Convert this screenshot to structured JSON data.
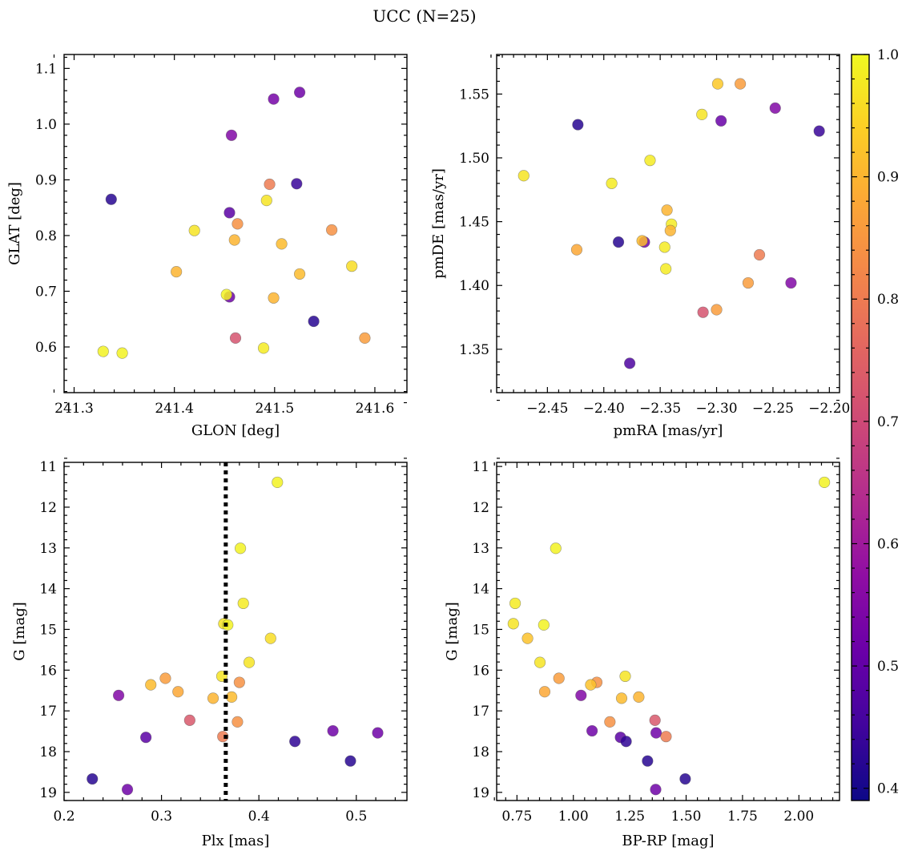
{
  "title": "UCC (N=25)",
  "colors": {
    "cmap": "plasma",
    "vmin": 0.39,
    "vmax": 1.0,
    "refline": "#000000"
  },
  "chart_data": [
    {
      "type": "scatter",
      "id": "glon_glat",
      "xlabel": "GLON [deg]",
      "ylabel": "GLAT [deg]",
      "xlim": [
        241.29,
        241.632
      ],
      "ylim": [
        0.518,
        1.125
      ],
      "xticks": [
        241.3,
        241.4,
        241.5,
        241.6
      ],
      "xtick_labels": [
        "241.3",
        "241.4",
        "241.5",
        "241.6"
      ],
      "yticks": [
        0.6,
        0.7,
        0.8,
        0.9,
        1.0,
        1.1
      ],
      "ytick_labels": [
        "0.6",
        "0.7",
        "0.8",
        "0.9",
        "1.0",
        "1.1"
      ],
      "points": [
        {
          "x": 241.525,
          "y": 1.057,
          "c": 0.52
        },
        {
          "x": 241.499,
          "y": 1.045,
          "c": 0.53
        },
        {
          "x": 241.457,
          "y": 0.98,
          "c": 0.55
        },
        {
          "x": 241.337,
          "y": 0.865,
          "c": 0.42
        },
        {
          "x": 241.495,
          "y": 0.892,
          "c": 0.8
        },
        {
          "x": 241.522,
          "y": 0.893,
          "c": 0.44
        },
        {
          "x": 241.492,
          "y": 0.863,
          "c": 0.97
        },
        {
          "x": 241.455,
          "y": 0.841,
          "c": 0.49
        },
        {
          "x": 241.463,
          "y": 0.821,
          "c": 0.84
        },
        {
          "x": 241.42,
          "y": 0.809,
          "c": 0.97
        },
        {
          "x": 241.46,
          "y": 0.792,
          "c": 0.9
        },
        {
          "x": 241.507,
          "y": 0.785,
          "c": 0.91
        },
        {
          "x": 241.557,
          "y": 0.81,
          "c": 0.84
        },
        {
          "x": 241.402,
          "y": 0.735,
          "c": 0.9
        },
        {
          "x": 241.577,
          "y": 0.745,
          "c": 0.96
        },
        {
          "x": 241.525,
          "y": 0.731,
          "c": 0.91
        },
        {
          "x": 241.455,
          "y": 0.69,
          "c": 0.52
        },
        {
          "x": 241.452,
          "y": 0.694,
          "c": 0.99
        },
        {
          "x": 241.499,
          "y": 0.688,
          "c": 0.9
        },
        {
          "x": 241.539,
          "y": 0.646,
          "c": 0.42
        },
        {
          "x": 241.461,
          "y": 0.616,
          "c": 0.72
        },
        {
          "x": 241.59,
          "y": 0.616,
          "c": 0.86
        },
        {
          "x": 241.489,
          "y": 0.598,
          "c": 0.98
        },
        {
          "x": 241.329,
          "y": 0.592,
          "c": 0.99
        },
        {
          "x": 241.348,
          "y": 0.589,
          "c": 0.99
        }
      ]
    },
    {
      "type": "scatter",
      "id": "pmra_pmde",
      "xlabel": "pmRA [mas/yr]",
      "ylabel": "pmDE [mas/yr]",
      "xlim": [
        -2.495,
        -2.191
      ],
      "ylim": [
        1.316,
        1.581
      ],
      "xticks": [
        -2.45,
        -2.4,
        -2.35,
        -2.3,
        -2.25,
        -2.2
      ],
      "xtick_labels": [
        "−2.45",
        "−2.40",
        "−2.35",
        "−2.30",
        "−2.25",
        "−2.20"
      ],
      "yticks": [
        1.35,
        1.4,
        1.45,
        1.5,
        1.55
      ],
      "ytick_labels": [
        "1.35",
        "1.40",
        "1.45",
        "1.50",
        "1.55"
      ],
      "points": [
        {
          "x": -2.299,
          "y": 1.558,
          "c": 0.93
        },
        {
          "x": -2.279,
          "y": 1.558,
          "c": 0.86
        },
        {
          "x": -2.248,
          "y": 1.539,
          "c": 0.55
        },
        {
          "x": -2.313,
          "y": 1.534,
          "c": 0.97
        },
        {
          "x": -2.296,
          "y": 1.529,
          "c": 0.51
        },
        {
          "x": -2.423,
          "y": 1.526,
          "c": 0.42
        },
        {
          "x": -2.209,
          "y": 1.521,
          "c": 0.44
        },
        {
          "x": -2.359,
          "y": 1.498,
          "c": 0.98
        },
        {
          "x": -2.471,
          "y": 1.486,
          "c": 0.97
        },
        {
          "x": -2.393,
          "y": 1.48,
          "c": 0.98
        },
        {
          "x": -2.344,
          "y": 1.459,
          "c": 0.9
        },
        {
          "x": -2.34,
          "y": 1.448,
          "c": 0.98
        },
        {
          "x": -2.341,
          "y": 1.443,
          "c": 0.9
        },
        {
          "x": -2.387,
          "y": 1.434,
          "c": 0.42
        },
        {
          "x": -2.364,
          "y": 1.434,
          "c": 0.52
        },
        {
          "x": -2.366,
          "y": 1.435,
          "c": 0.91
        },
        {
          "x": -2.346,
          "y": 1.43,
          "c": 0.98
        },
        {
          "x": -2.424,
          "y": 1.428,
          "c": 0.88
        },
        {
          "x": -2.262,
          "y": 1.424,
          "c": 0.8
        },
        {
          "x": -2.345,
          "y": 1.413,
          "c": 0.98
        },
        {
          "x": -2.272,
          "y": 1.402,
          "c": 0.86
        },
        {
          "x": -2.234,
          "y": 1.402,
          "c": 0.55
        },
        {
          "x": -2.3,
          "y": 1.381,
          "c": 0.86
        },
        {
          "x": -2.312,
          "y": 1.379,
          "c": 0.72
        },
        {
          "x": -2.377,
          "y": 1.339,
          "c": 0.47
        }
      ]
    },
    {
      "type": "scatter",
      "id": "plx_g",
      "xlabel": "Plx [mas]",
      "ylabel": "G [mag]",
      "xlim": [
        0.2,
        0.552
      ],
      "ylim": [
        19.2,
        10.9
      ],
      "y_inverted": true,
      "xticks": [
        0.2,
        0.3,
        0.4,
        0.5
      ],
      "xtick_labels": [
        "0.2",
        "0.3",
        "0.4",
        "0.5"
      ],
      "yticks": [
        11,
        12,
        13,
        14,
        15,
        16,
        17,
        18,
        19
      ],
      "ytick_labels": [
        "11",
        "12",
        "13",
        "14",
        "15",
        "16",
        "17",
        "18",
        "19"
      ],
      "vline": {
        "x": 0.366,
        "style": "dotted"
      },
      "points": [
        {
          "x": 0.419,
          "y": 11.39,
          "c": 0.99
        },
        {
          "x": 0.381,
          "y": 13.01,
          "c": 0.99
        },
        {
          "x": 0.384,
          "y": 14.36,
          "c": 0.98
        },
        {
          "x": 0.364,
          "y": 14.86,
          "c": 0.97
        },
        {
          "x": 0.368,
          "y": 14.89,
          "c": 0.99
        },
        {
          "x": 0.412,
          "y": 15.22,
          "c": 0.96
        },
        {
          "x": 0.39,
          "y": 15.81,
          "c": 0.97
        },
        {
          "x": 0.362,
          "y": 16.15,
          "c": 0.97
        },
        {
          "x": 0.304,
          "y": 16.2,
          "c": 0.86
        },
        {
          "x": 0.38,
          "y": 16.3,
          "c": 0.84
        },
        {
          "x": 0.289,
          "y": 16.36,
          "c": 0.91
        },
        {
          "x": 0.317,
          "y": 16.53,
          "c": 0.88
        },
        {
          "x": 0.256,
          "y": 16.62,
          "c": 0.55
        },
        {
          "x": 0.372,
          "y": 16.66,
          "c": 0.91
        },
        {
          "x": 0.353,
          "y": 16.69,
          "c": 0.9
        },
        {
          "x": 0.329,
          "y": 17.23,
          "c": 0.73
        },
        {
          "x": 0.378,
          "y": 17.27,
          "c": 0.84
        },
        {
          "x": 0.476,
          "y": 17.49,
          "c": 0.52
        },
        {
          "x": 0.522,
          "y": 17.54,
          "c": 0.52
        },
        {
          "x": 0.363,
          "y": 17.63,
          "c": 0.8
        },
        {
          "x": 0.284,
          "y": 17.65,
          "c": 0.49
        },
        {
          "x": 0.437,
          "y": 17.75,
          "c": 0.43
        },
        {
          "x": 0.494,
          "y": 18.23,
          "c": 0.42
        },
        {
          "x": 0.229,
          "y": 18.67,
          "c": 0.42
        },
        {
          "x": 0.265,
          "y": 18.93,
          "c": 0.52
        }
      ]
    },
    {
      "type": "scatter",
      "id": "bprp_g",
      "xlabel": "BP-RP [mag]",
      "ylabel": "G [mag]",
      "xlim": [
        0.66,
        2.18
      ],
      "ylim": [
        19.2,
        10.9
      ],
      "y_inverted": true,
      "xticks": [
        0.75,
        1.0,
        1.25,
        1.5,
        1.75,
        2.0
      ],
      "xtick_labels": [
        "0.75",
        "1.00",
        "1.25",
        "1.50",
        "1.75",
        "2.00"
      ],
      "yticks": [
        11,
        12,
        13,
        14,
        15,
        16,
        17,
        18,
        19
      ],
      "ytick_labels": [
        "11",
        "12",
        "13",
        "14",
        "15",
        "16",
        "17",
        "18",
        "19"
      ],
      "points": [
        {
          "x": 2.113,
          "y": 11.39,
          "c": 0.99
        },
        {
          "x": 0.922,
          "y": 13.01,
          "c": 0.99
        },
        {
          "x": 0.742,
          "y": 14.36,
          "c": 0.98
        },
        {
          "x": 0.734,
          "y": 14.86,
          "c": 0.97
        },
        {
          "x": 0.869,
          "y": 14.89,
          "c": 0.99
        },
        {
          "x": 0.797,
          "y": 15.22,
          "c": 0.92
        },
        {
          "x": 0.852,
          "y": 15.81,
          "c": 0.97
        },
        {
          "x": 1.23,
          "y": 16.15,
          "c": 0.97
        },
        {
          "x": 0.936,
          "y": 16.2,
          "c": 0.86
        },
        {
          "x": 1.104,
          "y": 16.3,
          "c": 0.84
        },
        {
          "x": 1.077,
          "y": 16.36,
          "c": 0.92
        },
        {
          "x": 0.873,
          "y": 16.53,
          "c": 0.88
        },
        {
          "x": 1.034,
          "y": 16.62,
          "c": 0.55
        },
        {
          "x": 1.29,
          "y": 16.66,
          "c": 0.9
        },
        {
          "x": 1.214,
          "y": 16.69,
          "c": 0.91
        },
        {
          "x": 1.362,
          "y": 17.23,
          "c": 0.73
        },
        {
          "x": 1.162,
          "y": 17.27,
          "c": 0.84
        },
        {
          "x": 1.083,
          "y": 17.49,
          "c": 0.52
        },
        {
          "x": 1.367,
          "y": 17.54,
          "c": 0.52
        },
        {
          "x": 1.411,
          "y": 17.63,
          "c": 0.8
        },
        {
          "x": 1.209,
          "y": 17.65,
          "c": 0.49
        },
        {
          "x": 1.234,
          "y": 17.75,
          "c": 0.43
        },
        {
          "x": 1.329,
          "y": 18.23,
          "c": 0.42
        },
        {
          "x": 1.496,
          "y": 18.67,
          "c": 0.42
        },
        {
          "x": 1.365,
          "y": 18.93,
          "c": 0.52
        }
      ]
    }
  ],
  "colorbar": {
    "ticks": [
      0.4,
      0.5,
      0.6,
      0.7,
      0.8,
      0.9,
      1.0
    ],
    "tick_labels": [
      "0.4",
      "0.5",
      "0.6",
      "0.7",
      "0.8",
      "0.9",
      "1.0"
    ]
  }
}
